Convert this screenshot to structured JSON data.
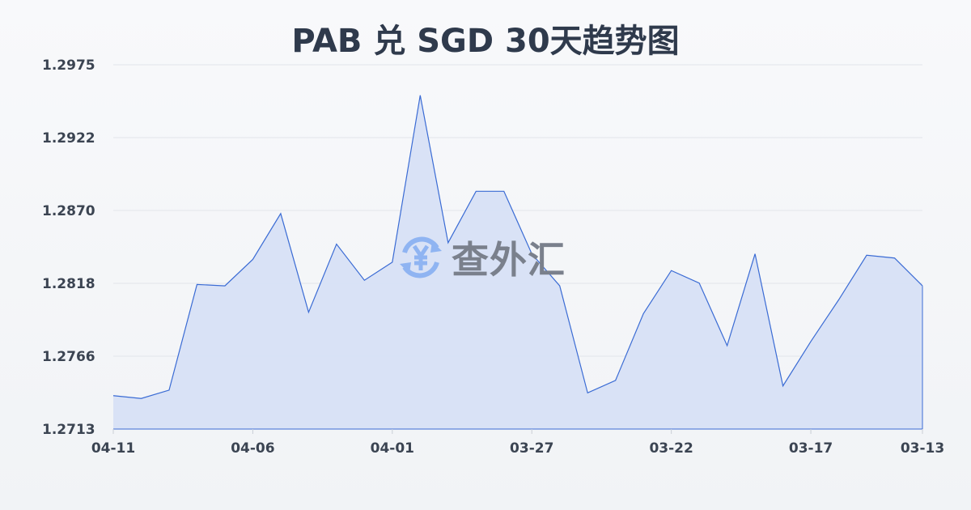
{
  "chart_data": {
    "type": "area",
    "title": "PAB 兑 SGD 30天趋势图",
    "xlabel": "",
    "ylabel": "",
    "x": [
      "04-11",
      "04-10",
      "04-09",
      "04-08",
      "04-07",
      "04-06",
      "04-05",
      "04-04",
      "04-03",
      "04-02",
      "04-01",
      "03-31",
      "03-30",
      "03-29",
      "03-28",
      "03-27",
      "03-26",
      "03-25",
      "03-24",
      "03-23",
      "03-22",
      "03-21",
      "03-20",
      "03-19",
      "03-18",
      "03-17",
      "03-16",
      "03-15",
      "03-14",
      "03-13"
    ],
    "values": [
      1.2737,
      1.2735,
      1.2741,
      1.2817,
      1.2816,
      1.2835,
      1.2868,
      1.2797,
      1.2846,
      1.282,
      1.2833,
      1.2953,
      1.2847,
      1.2884,
      1.2884,
      1.2839,
      1.2816,
      1.2739,
      1.2748,
      1.2796,
      1.2827,
      1.2818,
      1.2773,
      1.2839,
      1.2744,
      1.2776,
      1.2806,
      1.2838,
      1.2836,
      1.2816
    ],
    "x_tick_labels": [
      "04-11",
      "04-06",
      "04-01",
      "03-27",
      "03-22",
      "03-17",
      "03-13"
    ],
    "y_tick_labels": [
      "1.2975",
      "1.2922",
      "1.2870",
      "1.2818",
      "1.2766",
      "1.2713"
    ],
    "ylim": [
      1.2713,
      1.2975
    ],
    "grid": "horizontal",
    "colors": {
      "line": "#3a6bd4",
      "fill": "#d7e0f5"
    }
  },
  "watermark": {
    "text": "查外汇",
    "icon": "yen-exchange-icon",
    "color": "#8fb4f2"
  }
}
